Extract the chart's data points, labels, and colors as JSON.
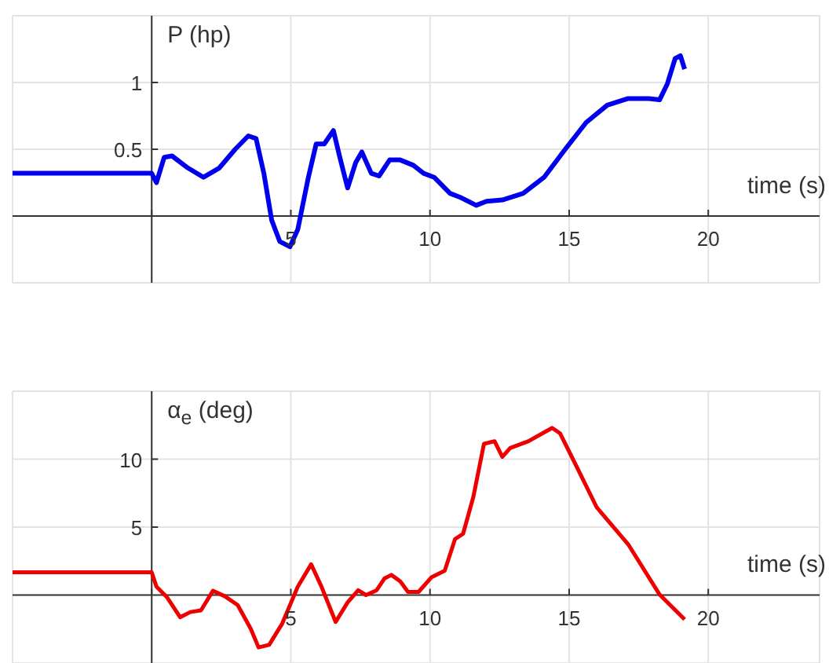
{
  "chart_data": [
    {
      "type": "line",
      "xlabel": "time (s)",
      "ylabel": "P (hp)",
      "xlim": [
        -5,
        24
      ],
      "ylim": [
        -0.5,
        1.5
      ],
      "xticks": [
        {
          "value": 0,
          "label": null
        },
        5,
        10,
        15,
        20
      ],
      "yticks": [
        0.5,
        1
      ],
      "grid": true,
      "marker": "none",
      "line_style": "solid",
      "color": "#0000ee",
      "x": [
        -5,
        0,
        0.17,
        0.45,
        0.73,
        1.3,
        1.86,
        2.43,
        3.0,
        3.47,
        3.75,
        4.03,
        4.31,
        4.6,
        4.97,
        5.25,
        5.63,
        5.91,
        6.2,
        6.53,
        6.76,
        7.04,
        7.33,
        7.55,
        7.89,
        8.17,
        8.55,
        8.93,
        9.4,
        9.77,
        10.15,
        10.72,
        11.09,
        11.66,
        12.03,
        12.6,
        13.35,
        14.1,
        14.86,
        15.61,
        16.37,
        17.12,
        17.87,
        18.25,
        18.53,
        18.81,
        19.0,
        19.15
      ],
      "values": [
        0.32,
        0.32,
        0.25,
        0.44,
        0.45,
        0.36,
        0.29,
        0.36,
        0.5,
        0.6,
        0.58,
        0.32,
        -0.03,
        -0.19,
        -0.23,
        -0.1,
        0.29,
        0.54,
        0.54,
        0.64,
        0.44,
        0.21,
        0.4,
        0.48,
        0.32,
        0.3,
        0.42,
        0.42,
        0.38,
        0.32,
        0.29,
        0.17,
        0.14,
        0.08,
        0.11,
        0.12,
        0.17,
        0.29,
        0.5,
        0.7,
        0.83,
        0.88,
        0.88,
        0.87,
        0.99,
        1.18,
        1.2,
        1.1
      ]
    },
    {
      "type": "line",
      "xlabel": "time (s)",
      "ylabel": "α$_{e}$ (deg)",
      "xlim": [
        -5,
        24
      ],
      "ylim": [
        -5,
        15
      ],
      "xticks": [
        {
          "value": 0,
          "label": null
        },
        5,
        10,
        15,
        20
      ],
      "yticks": [
        5,
        10
      ],
      "grid": true,
      "marker": "none",
      "line_style": "solid",
      "color": "#ee0000",
      "x": [
        -5,
        0,
        0.17,
        0.55,
        1.02,
        1.39,
        1.77,
        2.2,
        2.62,
        3.09,
        3.56,
        3.84,
        4.22,
        4.69,
        5.25,
        5.73,
        6.1,
        6.61,
        7.04,
        7.42,
        7.7,
        8.08,
        8.36,
        8.61,
        8.93,
        9.21,
        9.59,
        10.06,
        10.53,
        10.9,
        11.19,
        11.56,
        11.94,
        12.32,
        12.6,
        12.88,
        13.54,
        14.39,
        14.67,
        15.24,
        15.99,
        17.12,
        18.25,
        19.15
      ],
      "values": [
        1.67,
        1.67,
        0.62,
        -0.16,
        -1.63,
        -1.25,
        -1.13,
        0.31,
        -0.08,
        -0.74,
        -2.49,
        -3.85,
        -3.66,
        -2.1,
        0.62,
        2.26,
        0.62,
        -1.98,
        -0.54,
        0.35,
        0,
        0.35,
        1.21,
        1.48,
        1.01,
        0.23,
        0.23,
        1.32,
        1.79,
        4.12,
        4.51,
        7.24,
        11.13,
        11.32,
        10.16,
        10.82,
        11.32,
        12.3,
        11.91,
        9.57,
        6.46,
        3.74,
        0.04,
        -1.79
      ]
    }
  ]
}
